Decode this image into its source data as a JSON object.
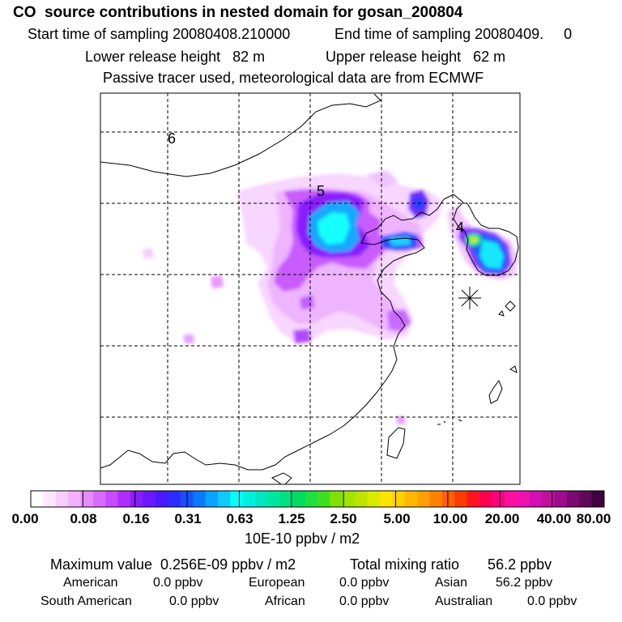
{
  "header": {
    "title": "CO  source contributions in nested domain for gosan_200804",
    "start_time": "Start time of sampling 20080408.210000",
    "end_time": "End time of sampling 20080409.     0",
    "lower_release": "Lower release height   82 m",
    "upper_release": "Upper release height   62 m",
    "tracer_note": "Passive tracer used, meteorological data are from ECMWF"
  },
  "chart_data": {
    "type": "heatmap",
    "title": "CO  source contributions in nested domain for gosan_200804",
    "contour_labels": [
      "6",
      "5",
      "4"
    ],
    "colorbar": {
      "unit_label": "10E-10 ppbv / m2",
      "tick_labels": [
        "0.00",
        "0.08",
        "0.16",
        "0.31",
        "0.63",
        "1.25",
        "2.50",
        "5.00",
        "10.00",
        "20.00",
        "40.00",
        "80.00"
      ],
      "colors": [
        "#ffffff",
        "#fde8ff",
        "#f8ccff",
        "#f2b0ff",
        "#e68cff",
        "#d96bff",
        "#c84bff",
        "#b02dff",
        "#8a1dff",
        "#6a18ff",
        "#4a1aff",
        "#2c2cff",
        "#1650ff",
        "#0a78ff",
        "#08a4ff",
        "#10c8ff",
        "#00ffff",
        "#00f0e0",
        "#00e6c0",
        "#00e6a0",
        "#00e080",
        "#00dc60",
        "#20e040",
        "#3ce020",
        "#80e000",
        "#a0e400",
        "#bce400",
        "#d8ec00",
        "#ffe400",
        "#ffd000",
        "#ffb800",
        "#ffa000",
        "#ff8000",
        "#ff6000",
        "#ff3c00",
        "#ff1420",
        "#ff0050",
        "#ff0080",
        "#ff10a0",
        "#f010b0",
        "#d010b0",
        "#c0109e",
        "#9c0c8c",
        "#7a0a70",
        "#60085a",
        "#400040"
      ]
    },
    "values": {
      "maximum": "Maximum value  0.256E-09 ppbv / m2",
      "total_mixing": "Total mixing ratio       56.2 ppbv"
    }
  },
  "regions": {
    "american": {
      "label": "American",
      "value": "0.0 ppbv"
    },
    "european": {
      "label": "European",
      "value": "0.0 ppbv"
    },
    "asian": {
      "label": "Asian",
      "value": "56.2 ppbv"
    },
    "south_american": {
      "label": "South American",
      "value": "0.0 ppbv"
    },
    "african": {
      "label": "African",
      "value": "0.0 ppbv"
    },
    "australian": {
      "label": "Australian",
      "value": "0.0 ppbv"
    }
  }
}
